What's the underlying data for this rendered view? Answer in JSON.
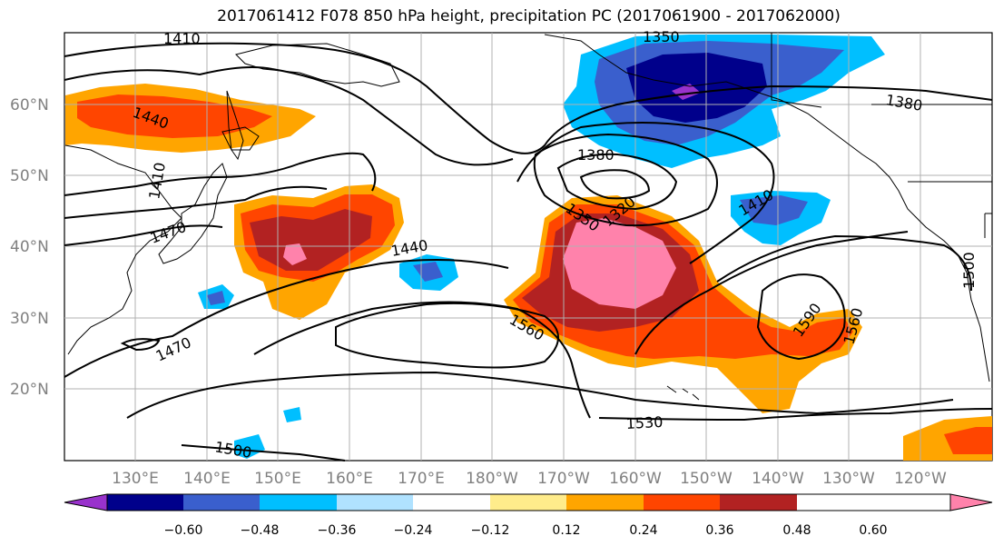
{
  "title": "2017061412 F078 850 hPa height, precipitation PC (2017061900 - 2017062000)",
  "lat_labels": [
    "60°N",
    "50°N",
    "40°N",
    "30°N",
    "20°N"
  ],
  "lon_labels": [
    "130°E",
    "140°E",
    "150°E",
    "160°E",
    "170°E",
    "180°W",
    "170°W",
    "160°W",
    "150°W",
    "140°W",
    "130°W",
    "120°W"
  ],
  "contour_labels": [
    "1410",
    "1440",
    "1410",
    "1470",
    "1440",
    "1350",
    "1380",
    "1380",
    "1350",
    "1320",
    "1410",
    "1500",
    "1560",
    "1590",
    "1560",
    "1470",
    "1530",
    "1500"
  ],
  "colorbar": {
    "ticks": [
      "−0.60",
      "−0.48",
      "−0.36",
      "−0.24",
      "−0.12",
      "0.12",
      "0.24",
      "0.36",
      "0.48",
      "0.60"
    ],
    "colors": [
      "#9932CC",
      "#00008B",
      "#3A5FCD",
      "#00BFFF",
      "#B0E2FF",
      "#FFFFFF",
      "#FFEC8B",
      "#FFA500",
      "#FF4500",
      "#B22222",
      "#FF82AB"
    ]
  },
  "colors": {
    "contour": "#000000",
    "grid": "#b0b0b0",
    "axis_label": "#808080"
  }
}
